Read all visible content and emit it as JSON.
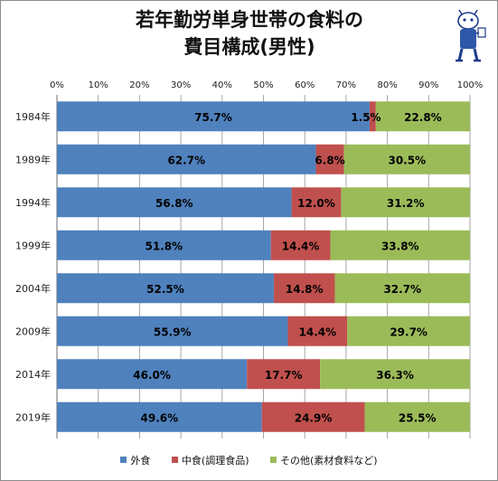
{
  "title": {
    "line1": "若年勤労単身世帯の食料の",
    "line2": "費目構成(男性)"
  },
  "colors": {
    "外食": "#4f81bd",
    "中食": "#c0504d",
    "その他": "#9bbb59"
  },
  "chart_data": {
    "type": "bar",
    "orientation": "horizontal",
    "stacked": "percent",
    "categories": [
      "1984年",
      "1989年",
      "1994年",
      "1999年",
      "2004年",
      "2009年",
      "2014年",
      "2019年"
    ],
    "series": [
      {
        "name": "外食",
        "values": [
          75.7,
          62.7,
          56.8,
          51.8,
          52.5,
          55.9,
          46.0,
          49.6
        ]
      },
      {
        "name": "中食(調理食品)",
        "values": [
          1.5,
          6.8,
          12.0,
          14.4,
          14.8,
          14.4,
          17.7,
          24.9
        ]
      },
      {
        "name": "その他(素材食料など)",
        "values": [
          22.8,
          30.5,
          31.2,
          33.8,
          32.7,
          29.7,
          36.3,
          25.5
        ]
      }
    ],
    "data_labels": [
      [
        "75.7%",
        "1.5%",
        "22.8%"
      ],
      [
        "62.7%",
        "6.8%",
        "30.5%"
      ],
      [
        "56.8%",
        "12.0%",
        "31.2%"
      ],
      [
        "51.8%",
        "14.4%",
        "33.8%"
      ],
      [
        "52.5%",
        "14.8%",
        "32.7%"
      ],
      [
        "55.9%",
        "14.4%",
        "29.7%"
      ],
      [
        "46.0%",
        "17.7%",
        "36.3%"
      ],
      [
        "49.6%",
        "24.9%",
        "25.5%"
      ]
    ],
    "x_ticks": [
      "0%",
      "10%",
      "20%",
      "30%",
      "40%",
      "50%",
      "60%",
      "70%",
      "80%",
      "90%",
      "100%"
    ],
    "xlim": [
      0,
      100
    ],
    "grid": true,
    "legend_position": "bottom"
  }
}
